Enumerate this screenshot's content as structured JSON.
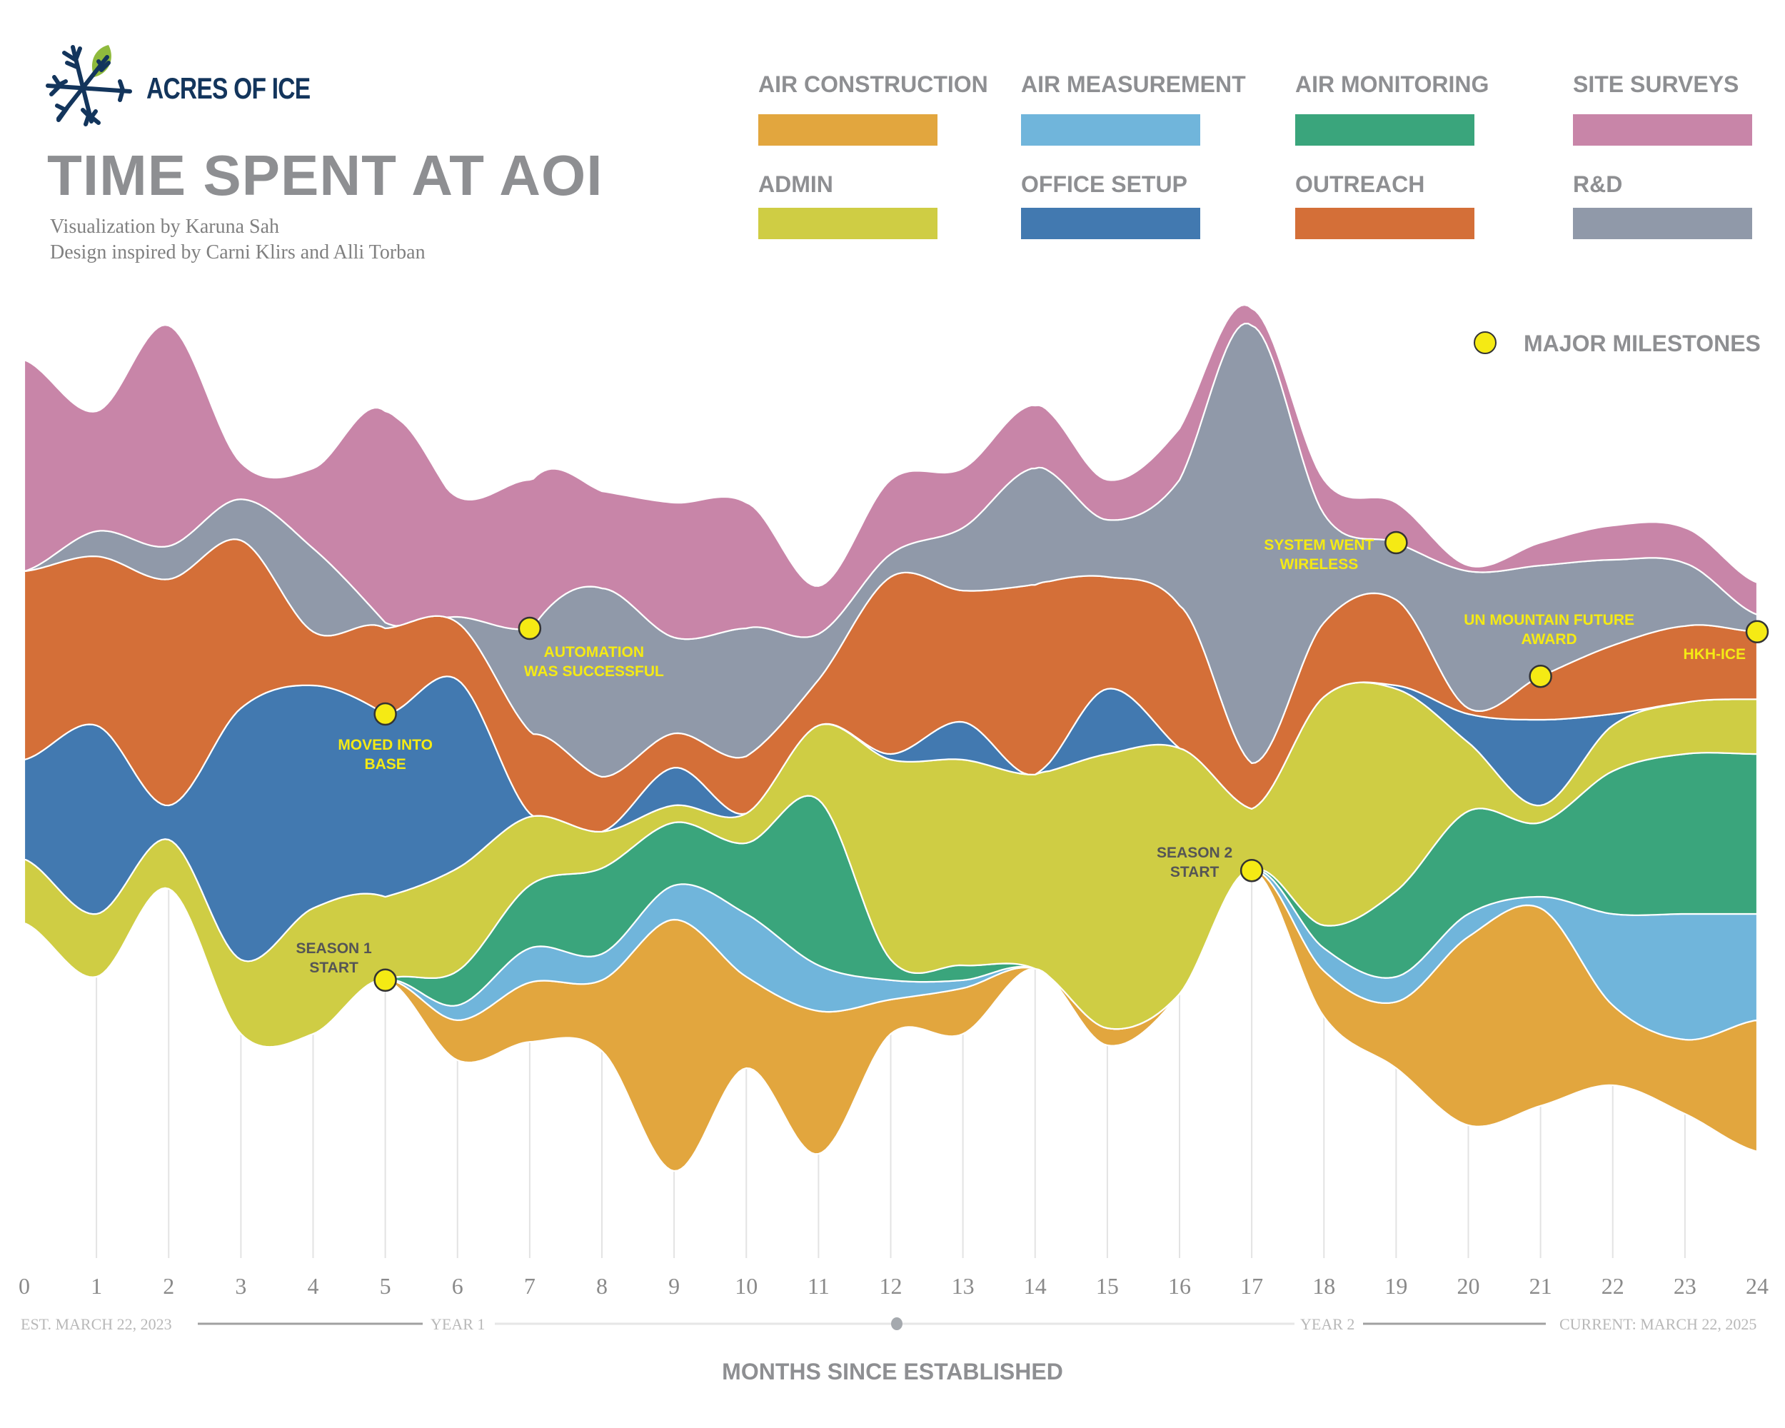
{
  "brand": {
    "name": "ACRES OF ICE",
    "logo_icon": "snowflake-leaf-icon"
  },
  "header": {
    "title": "TIME SPENT AT AOI",
    "credit_1": "Visualization by Karuna Sah",
    "credit_2": "Design inspired by Carni Klirs and Alli Torban"
  },
  "legend": [
    {
      "label": "AIR CONSTRUCTION",
      "color": "#e2a63e"
    },
    {
      "label": "AIR MEASUREMENT",
      "color": "#70b5db"
    },
    {
      "label": "AIR MONITORING",
      "color": "#3aa57c"
    },
    {
      "label": "SITE SURVEYS",
      "color": "#c885a8"
    },
    {
      "label": "ADMIN",
      "color": "#cfcd44"
    },
    {
      "label": "OFFICE SETUP",
      "color": "#4279b0"
    },
    {
      "label": "OUTREACH",
      "color": "#d46f38"
    },
    {
      "label": "R&D",
      "color": "#9099a9"
    }
  ],
  "milestone_legend": {
    "label": "MAJOR MILESTONES",
    "color": "#f5ea14"
  },
  "timeline": {
    "start": "EST. MARCH 22, 2023",
    "year1": "YEAR 1",
    "year2": "YEAR 2",
    "end": "CURRENT: MARCH 22, 2025"
  },
  "chart_data": {
    "type": "area",
    "subtype": "streamgraph",
    "xlabel": "MONTHS SINCE ESTABLISHED",
    "ylabel": "",
    "x": [
      0,
      1,
      2,
      3,
      4,
      5,
      6,
      7,
      8,
      9,
      10,
      11,
      12,
      13,
      14,
      15,
      16,
      17,
      18,
      19,
      20,
      21,
      22,
      23,
      24
    ],
    "xlim": [
      0,
      24
    ],
    "value_units": "relative time spent (estimated)",
    "series": [
      {
        "name": "AIR CONSTRUCTION",
        "color": "#e2a63e",
        "values": [
          0,
          0,
          0,
          0,
          0,
          0,
          35,
          52,
          62,
          220,
          80,
          125,
          30,
          40,
          0,
          15,
          0,
          0,
          40,
          58,
          165,
          173,
          70,
          65,
          115
        ]
      },
      {
        "name": "AIR MEASUREMENT",
        "color": "#70b5db",
        "values": [
          0,
          0,
          0,
          0,
          0,
          0,
          13,
          30,
          23,
          30,
          55,
          40,
          17,
          7,
          0,
          0,
          0,
          0,
          20,
          22,
          20,
          10,
          80,
          110,
          93
        ]
      },
      {
        "name": "AIR MONITORING",
        "color": "#3aa57c",
        "values": [
          0,
          0,
          0,
          0,
          0,
          0,
          30,
          55,
          75,
          55,
          62,
          145,
          18,
          13,
          0,
          0,
          0,
          0,
          20,
          75,
          90,
          65,
          125,
          140,
          140
        ]
      },
      {
        "name": "ADMIN",
        "color": "#cfcd44",
        "values": [
          56,
          55,
          43,
          65,
          110,
          73,
          90,
          60,
          32,
          15,
          26,
          65,
          175,
          180,
          170,
          240,
          215,
          54,
          200,
          177,
          60,
          15,
          40,
          45,
          48
        ]
      },
      {
        "name": "OFFICE SETUP",
        "color": "#4279b0",
        "values": [
          87,
          165,
          30,
          220,
          195,
          160,
          165,
          3,
          0,
          33,
          0,
          0,
          5,
          33,
          0,
          57,
          0,
          0,
          0,
          3,
          25,
          75,
          10,
          0,
          0
        ]
      },
      {
        "name": "OUTREACH",
        "color": "#d46f38",
        "values": [
          165,
          148,
          198,
          147,
          47,
          75,
          50,
          72,
          48,
          30,
          50,
          40,
          155,
          115,
          166,
          98,
          125,
          40,
          65,
          75,
          5,
          38,
          60,
          67,
          59
        ]
      },
      {
        "name": "R&D",
        "color": "#9099a9",
        "values": [
          0,
          22,
          29,
          36,
          73,
          5,
          5,
          90,
          165,
          84,
          112,
          40,
          20,
          55,
          102,
          50,
          110,
          383,
          95,
          50,
          120,
          97,
          75,
          55,
          15
        ]
      },
      {
        "name": "SITE SURVEYS",
        "color": "#c885a8",
        "values": [
          185,
          105,
          193,
          32,
          70,
          185,
          105,
          130,
          85,
          118,
          110,
          42,
          65,
          52,
          55,
          35,
          45,
          15,
          30,
          35,
          5,
          20,
          30,
          31,
          28
        ]
      }
    ],
    "milestones": [
      {
        "month": 5,
        "label_1": "MOVED INTO",
        "label_2": "BASE",
        "layer": "OFFICE SETUP",
        "edge": "top"
      },
      {
        "month": 7,
        "label_1": "AUTOMATION",
        "label_2": "WAS SUCCESSFUL",
        "layer": "R&D",
        "edge": "top"
      },
      {
        "month": 5,
        "label_1": "SEASON 1",
        "label_2": "START",
        "layer": "AIR CONSTRUCTION",
        "edge": "bottom"
      },
      {
        "month": 17,
        "label_1": "SEASON 2",
        "label_2": "START",
        "layer": "AIR CONSTRUCTION",
        "edge": "bottom"
      },
      {
        "month": 19,
        "label_1": "SYSTEM WENT",
        "label_2": "WIRELESS",
        "layer": "R&D",
        "edge": "top"
      },
      {
        "month": 21,
        "label_1": "UN MOUNTAIN FUTURE",
        "label_2": "AWARD",
        "layer": "OUTREACH",
        "edge": "top"
      },
      {
        "month": 24,
        "label_1": "HKH-ICE",
        "label_2": "",
        "layer": "OUTREACH",
        "edge": "top"
      }
    ],
    "grid": "vertical lines per month",
    "legend_position": "top-right"
  }
}
